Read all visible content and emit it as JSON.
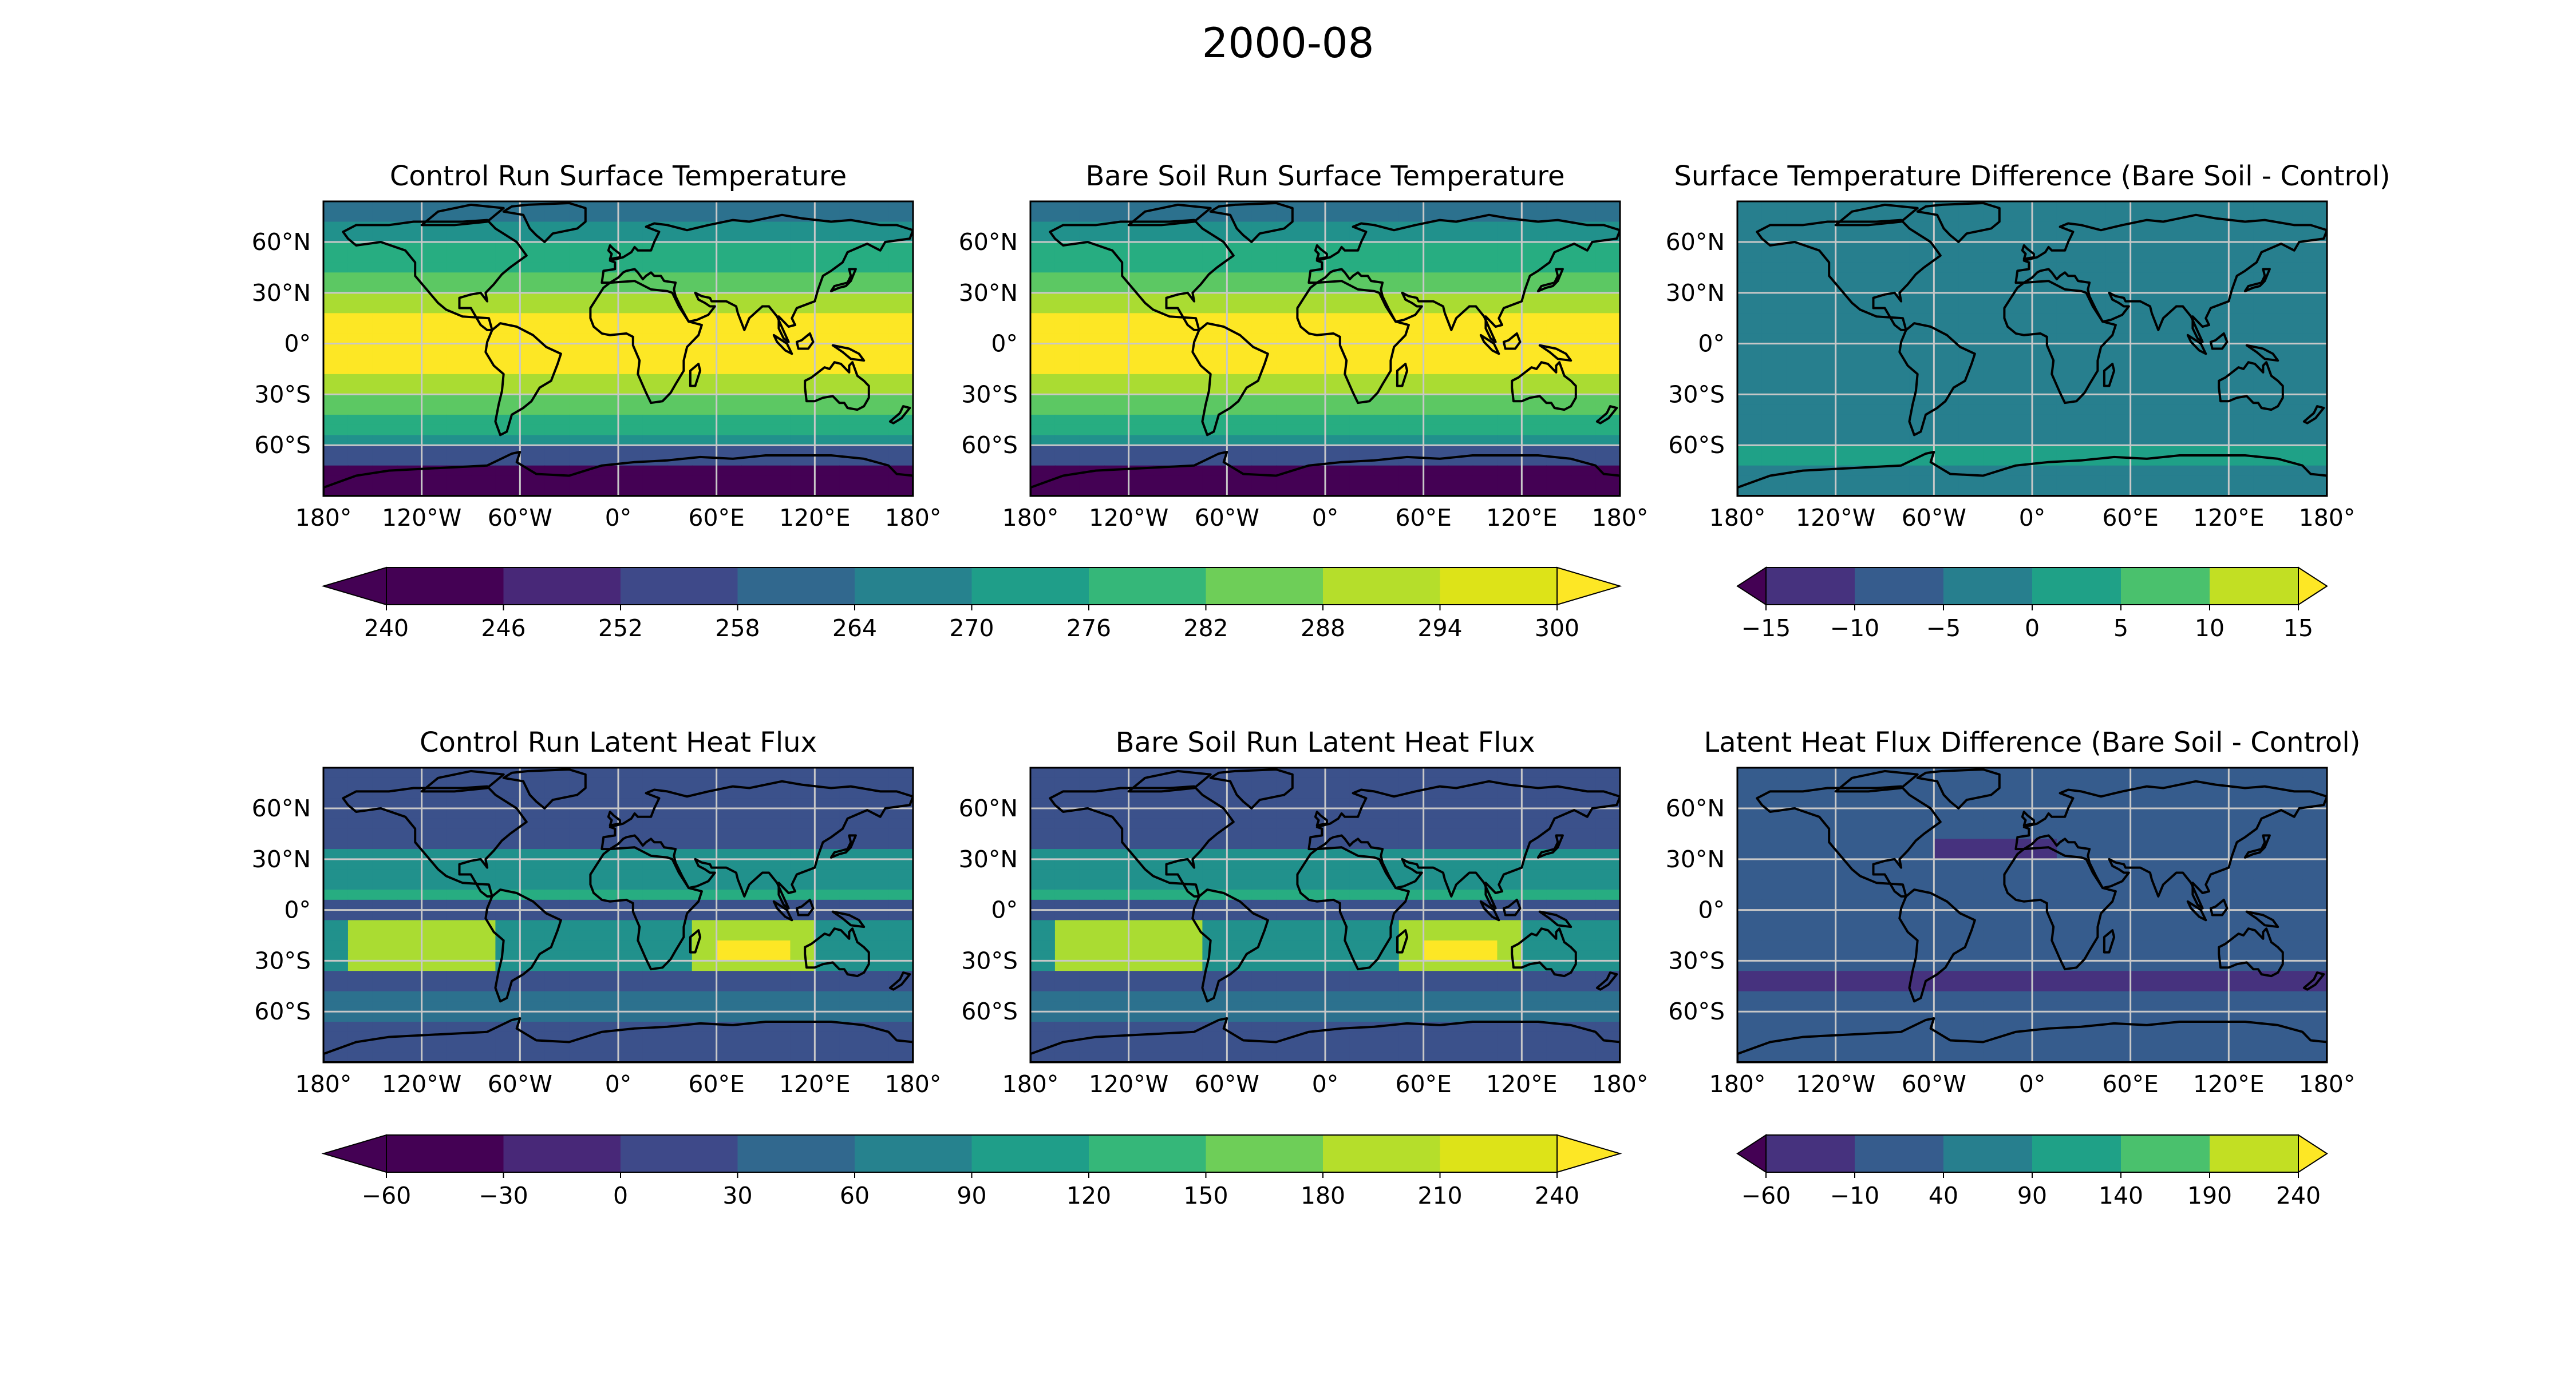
{
  "figure": {
    "title": "2000-08"
  },
  "colors": {
    "abs_temp": [
      "#440154",
      "#472f7d",
      "#3b518b",
      "#2c718e",
      "#21918c",
      "#27ad81",
      "#5cc863",
      "#aadc32",
      "#fde725"
    ],
    "diff_temp": [
      "#46327e",
      "#365c8d",
      "#277f8e",
      "#1fa187",
      "#4ac16d",
      "#a0da39"
    ],
    "coastline": "#000000",
    "grid": "#c8c8c8"
  },
  "panels": [
    {
      "title": "Control Run Surface Temperature",
      "variable": "surface temperature",
      "field": "temperature",
      "lat_ticks": [
        "60°N",
        "30°N",
        "0°",
        "30°S",
        "60°S"
      ],
      "lon_ticks": [
        "180°",
        "120°W",
        "60°W",
        "0°",
        "60°E",
        "120°E",
        "180°"
      ]
    },
    {
      "title": "Bare Soil Run Surface Temperature",
      "variable": "surface temperature",
      "field": "temperature",
      "lat_ticks": [
        "60°N",
        "30°N",
        "0°",
        "30°S",
        "60°S"
      ],
      "lon_ticks": [
        "180°",
        "120°W",
        "60°W",
        "0°",
        "60°E",
        "120°E",
        "180°"
      ]
    },
    {
      "title": "Surface Temperature Difference (Bare Soil - Control)",
      "variable": "surface temperature difference",
      "field": "temperature difference",
      "lat_ticks": [
        "60°N",
        "30°N",
        "0°",
        "30°S",
        "60°S"
      ],
      "lon_ticks": [
        "180°",
        "120°W",
        "60°W",
        "0°",
        "60°E",
        "120°E",
        "180°"
      ]
    },
    {
      "title": "Control Run Latent Heat Flux",
      "variable": "latent heat flux",
      "field": "flux",
      "lat_ticks": [
        "60°N",
        "30°N",
        "0°",
        "30°S",
        "60°S"
      ],
      "lon_ticks": [
        "180°",
        "120°W",
        "60°W",
        "0°",
        "60°E",
        "120°E",
        "180°"
      ]
    },
    {
      "title": "Bare Soil Run Latent Heat Flux",
      "variable": "latent heat flux",
      "field": "flux",
      "lat_ticks": [
        "60°N",
        "30°N",
        "0°",
        "30°S",
        "60°S"
      ],
      "lon_ticks": [
        "180°",
        "120°W",
        "60°W",
        "0°",
        "60°E",
        "120°E",
        "180°"
      ]
    },
    {
      "title": "Latent Heat Flux Difference (Bare Soil - Control)",
      "variable": "latent heat flux difference",
      "field": "flux difference",
      "lat_ticks": [
        "60°N",
        "30°N",
        "0°",
        "30°S",
        "60°S"
      ],
      "lon_ticks": [
        "180°",
        "120°W",
        "60°W",
        "0°",
        "60°E",
        "120°E",
        "180°"
      ]
    }
  ],
  "colorbars": [
    {
      "id": "temp-abs",
      "ticks": [
        "240",
        "246",
        "252",
        "258",
        "264",
        "270",
        "276",
        "282",
        "288",
        "294",
        "300"
      ],
      "levels": [
        240,
        246,
        252,
        258,
        264,
        270,
        276,
        282,
        288,
        294,
        300
      ],
      "colors": [
        "#440154",
        "#482878",
        "#3e4989",
        "#31688e",
        "#26828e",
        "#1f9e89",
        "#35b779",
        "#6ece58",
        "#b5de2b",
        "#dde318"
      ],
      "extend": "both",
      "under_color": "#440154",
      "over_color": "#fde725"
    },
    {
      "id": "temp-diff",
      "ticks": [
        "−15",
        "−10",
        "−5",
        "0",
        "5",
        "10",
        "15"
      ],
      "levels": [
        -15,
        -10,
        -5,
        0,
        5,
        10,
        15
      ],
      "colors": [
        "#46327e",
        "#365c8d",
        "#277f8e",
        "#1fa187",
        "#4ac16d",
        "#c2df23"
      ],
      "extend": "both",
      "under_color": "#440154",
      "over_color": "#fde725"
    },
    {
      "id": "lhf-abs",
      "ticks": [
        "−60",
        "−30",
        "0",
        "30",
        "60",
        "90",
        "120",
        "150",
        "180",
        "210",
        "240"
      ],
      "levels": [
        -60,
        -30,
        0,
        30,
        60,
        90,
        120,
        150,
        180,
        210,
        240
      ],
      "colors": [
        "#440154",
        "#482878",
        "#3e4989",
        "#31688e",
        "#26828e",
        "#1f9e89",
        "#35b779",
        "#6ece58",
        "#b5de2b",
        "#dde318"
      ],
      "extend": "both",
      "under_color": "#440154",
      "over_color": "#fde725"
    },
    {
      "id": "lhf-diff",
      "ticks": [
        "−60",
        "−10",
        "40",
        "90",
        "140",
        "190",
        "240"
      ],
      "levels": [
        -60,
        -10,
        40,
        90,
        140,
        190,
        240
      ],
      "colors": [
        "#46327e",
        "#365c8d",
        "#277f8e",
        "#1fa187",
        "#4ac16d",
        "#c2df23"
      ],
      "extend": "both",
      "under_color": "#440154",
      "over_color": "#fde725"
    }
  ]
}
